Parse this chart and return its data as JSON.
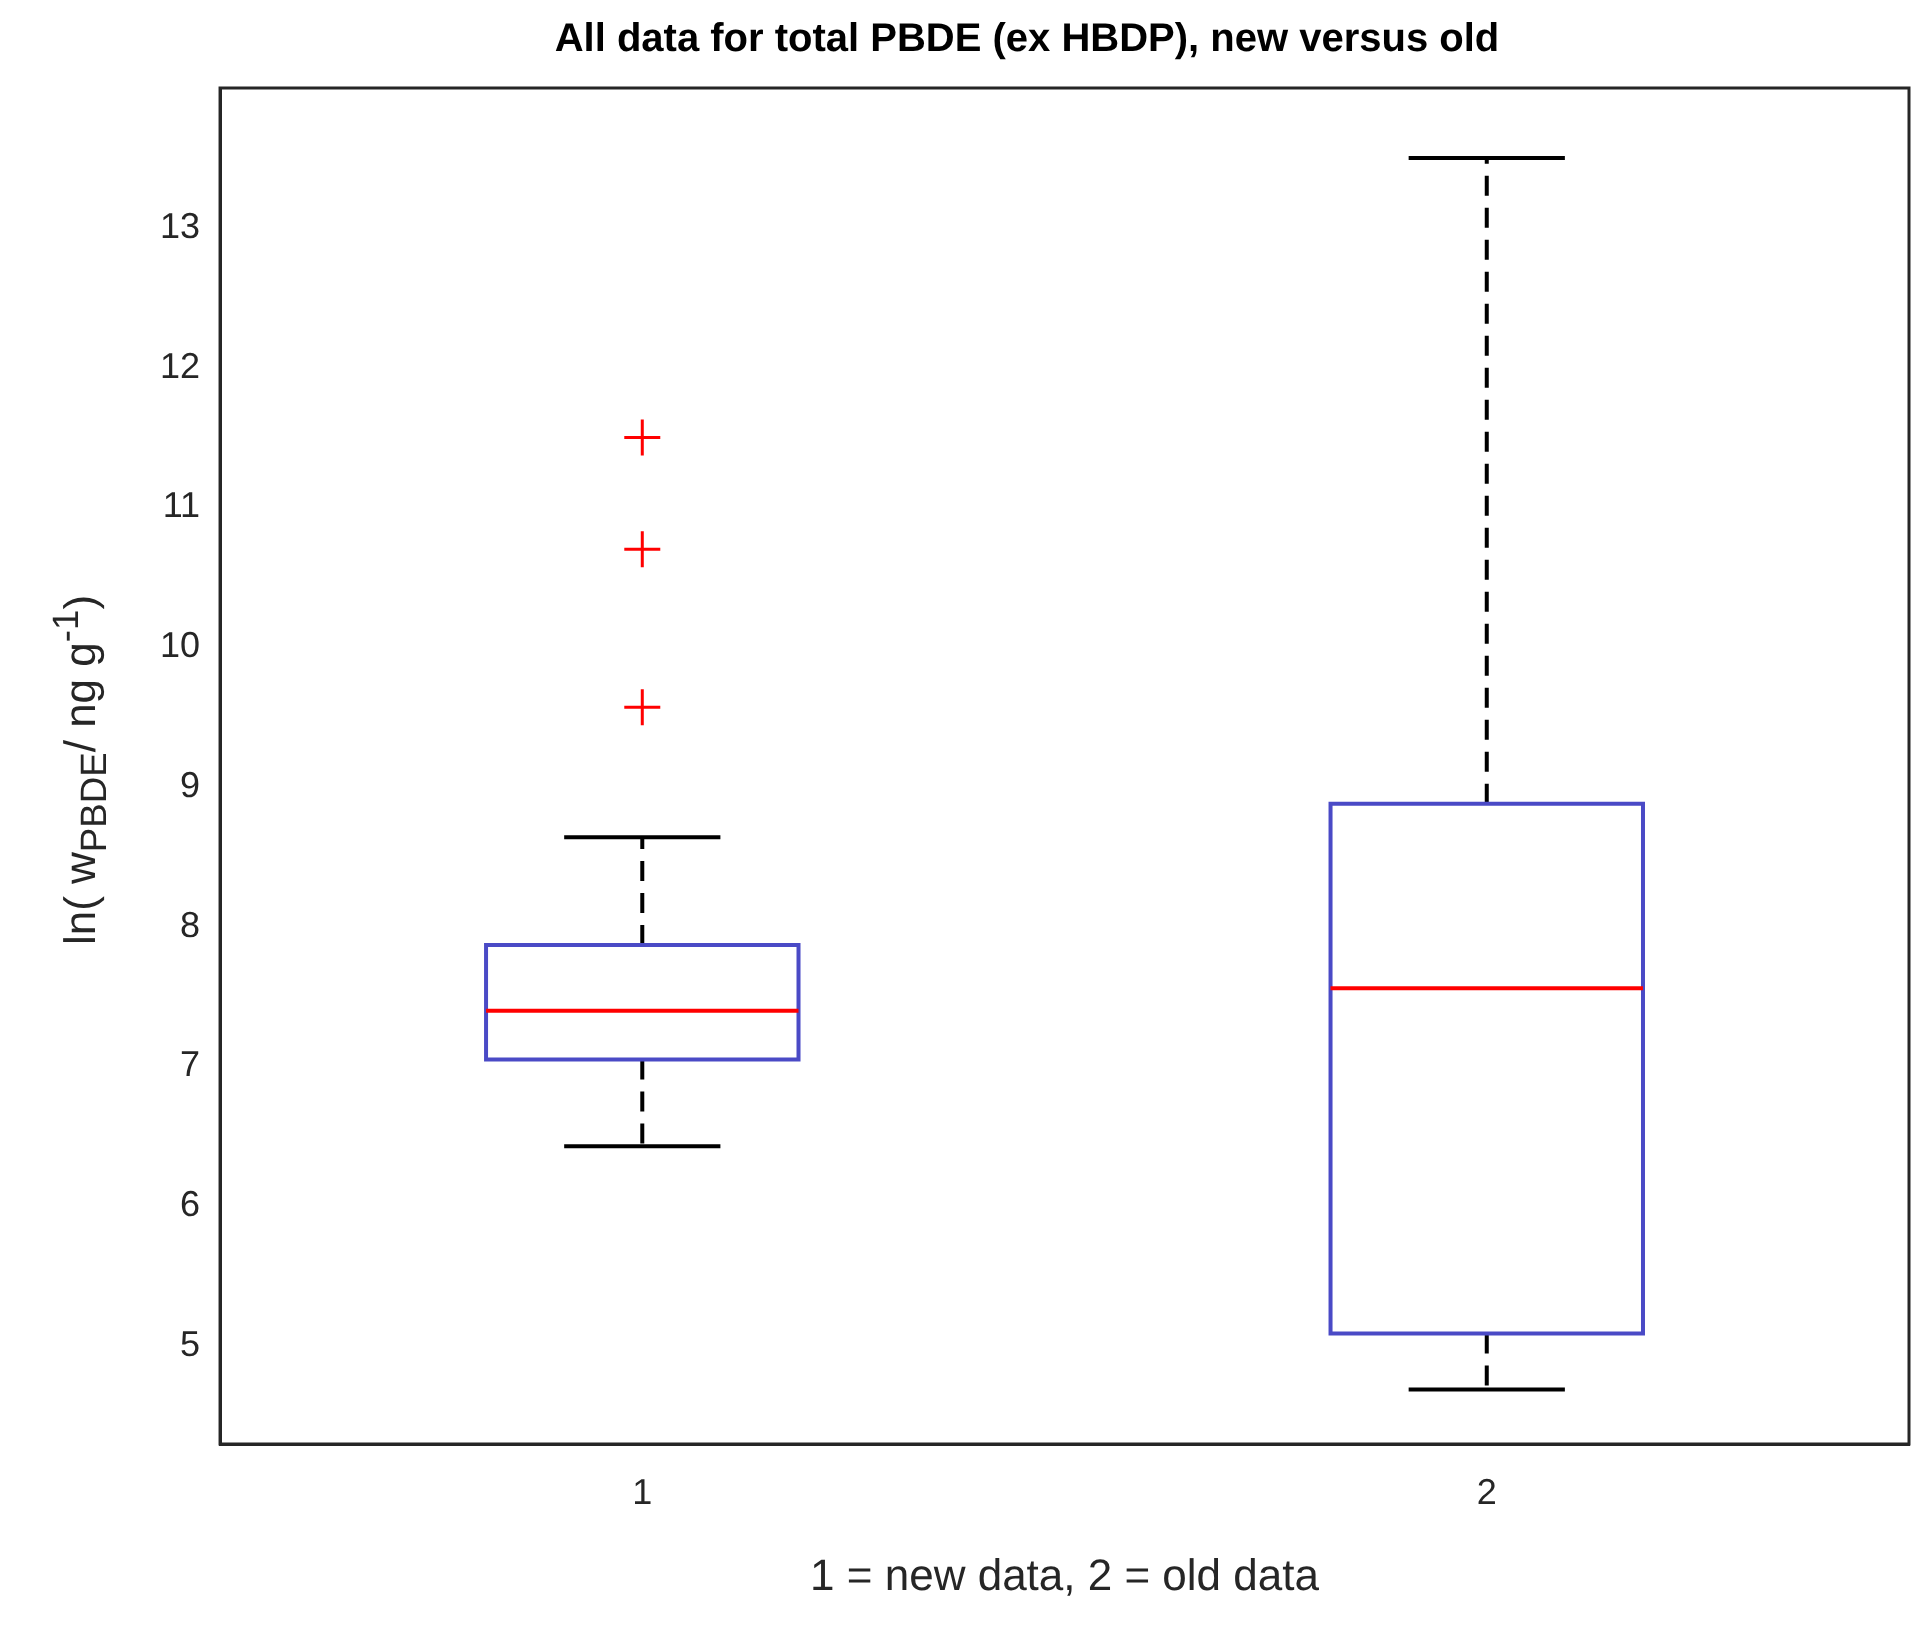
{
  "chart_data": {
    "type": "box",
    "title": "All data for total PBDE (ex HBDP), new versus old",
    "xlabel": "1 = new data, 2 = old data",
    "ylabel": "ln( w$_{PBDE}$/ ng g$^{-1}$)",
    "categories": [
      "1",
      "2"
    ],
    "series": [
      {
        "color": "#4a4ac6",
        "boxes": [
          {
            "low": 6.43,
            "q1": 7.05,
            "median": 7.4,
            "q3": 7.87,
            "high": 8.64,
            "outliers": [
              9.57,
              10.7,
              11.5
            ]
          },
          {
            "low": 4.69,
            "q1": 5.09,
            "median": 7.56,
            "q3": 8.88,
            "high": 13.5
          }
        ]
      }
    ],
    "ylim": [
      4.3,
      14
    ],
    "yticks": [
      5,
      6,
      7,
      8,
      9,
      10,
      11,
      12,
      13
    ],
    "grid": false,
    "legend": false,
    "marker": "cross"
  }
}
